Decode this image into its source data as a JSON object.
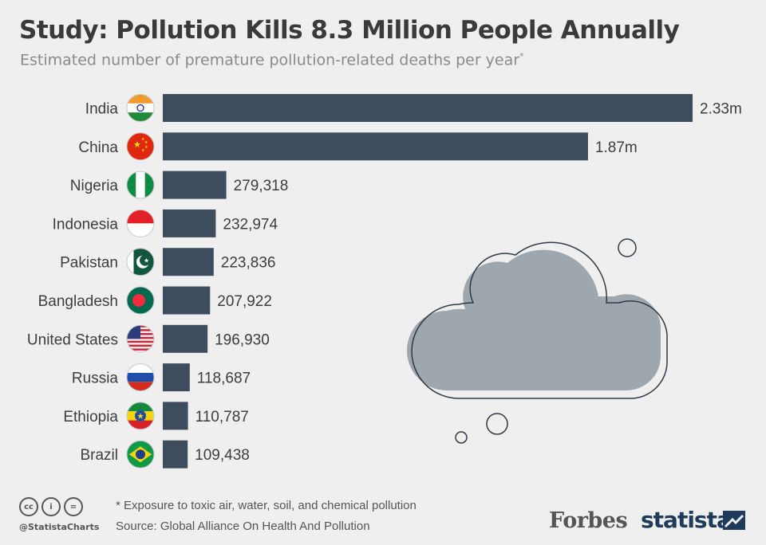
{
  "title": "Study: Pollution Kills 8.3 Million People Annually",
  "subtitle": "Estimated number of premature pollution-related deaths per year",
  "subtitle_marker": "*",
  "footnote": "* Exposure to toxic air, water, soil, and chemical pollution",
  "source": "Source: Global Alliance On Health And Pollution",
  "handle": "@StatistaCharts",
  "brands": {
    "forbes": "Forbes",
    "statista": "statista"
  },
  "license_icons": [
    "cc",
    "by",
    "nd"
  ],
  "colors": {
    "bar": "#3d4d5d",
    "background": "#efefef",
    "cloud": "#9ea6ae"
  },
  "chart_data": {
    "type": "bar",
    "orientation": "horizontal",
    "categories": [
      "India",
      "China",
      "Nigeria",
      "Indonesia",
      "Pakistan",
      "Bangladesh",
      "United States",
      "Russia",
      "Ethiopia",
      "Brazil"
    ],
    "values": [
      2330000,
      1870000,
      279318,
      232974,
      223836,
      207922,
      196930,
      118687,
      110787,
      109438
    ],
    "value_labels": [
      "2.33m",
      "1.87m",
      "279,318",
      "232,974",
      "223,836",
      "207,922",
      "196,930",
      "118,687",
      "110,787",
      "109,438"
    ],
    "flags": [
      "india",
      "china",
      "nigeria",
      "indonesia",
      "pakistan",
      "bangladesh",
      "united-states",
      "russia",
      "ethiopia",
      "brazil"
    ]
  }
}
